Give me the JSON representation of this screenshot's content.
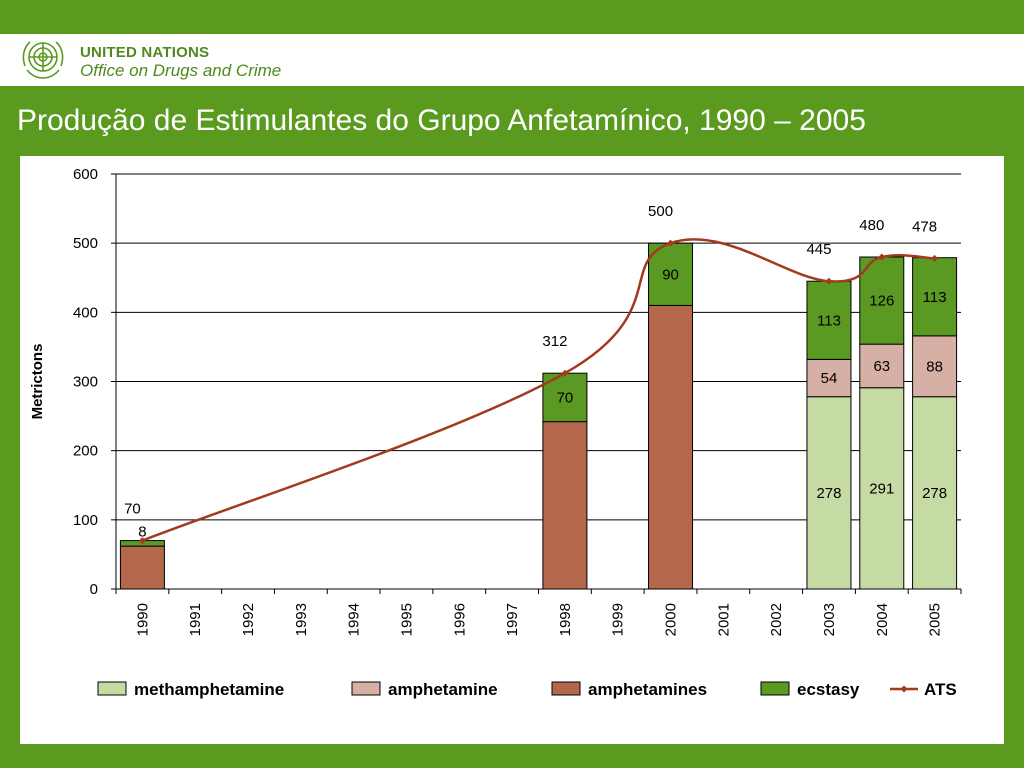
{
  "header": {
    "org_line1": "UNITED NATIONS",
    "org_line2": "Office on Drugs and Crime",
    "title": "Produção de Estimulantes do Grupo Anfetamínico, 1990 – 2005"
  },
  "colors": {
    "brand_green": "#5a9a1e",
    "methamphetamine": "#c6dba3",
    "amphetamine": "#d6b0a4",
    "amphetamines": "#b5674b",
    "ecstasy": "#5b9a22",
    "ATS": "#a33a1e"
  },
  "chart_data": {
    "type": "bar",
    "stacked": true,
    "title": "",
    "xlabel": "",
    "ylabel": "Metrictons",
    "ylim": [
      0,
      600
    ],
    "yticks": [
      0,
      100,
      200,
      300,
      400,
      500,
      600
    ],
    "grid": true,
    "legend_position": "bottom",
    "categories": [
      "1990",
      "1991",
      "1992",
      "1993",
      "1994",
      "1995",
      "1996",
      "1997",
      "1998",
      "1999",
      "2000",
      "2001",
      "2002",
      "2003",
      "2004",
      "2005"
    ],
    "series": [
      {
        "name": "methamphetamine",
        "values": [
          null,
          null,
          null,
          null,
          null,
          null,
          null,
          null,
          null,
          null,
          null,
          null,
          null,
          278,
          291,
          278
        ]
      },
      {
        "name": "amphetamine",
        "values": [
          null,
          null,
          null,
          null,
          null,
          null,
          null,
          null,
          null,
          null,
          null,
          null,
          null,
          54,
          63,
          88
        ]
      },
      {
        "name": "amphetamines",
        "values": [
          62,
          null,
          null,
          null,
          null,
          null,
          null,
          null,
          242,
          null,
          410,
          null,
          null,
          null,
          null,
          null
        ]
      },
      {
        "name": "ecstasy",
        "values": [
          8,
          null,
          null,
          null,
          null,
          null,
          null,
          null,
          70,
          null,
          90,
          null,
          null,
          113,
          126,
          113
        ]
      }
    ],
    "line": {
      "name": "ATS",
      "points": [
        [
          1990,
          70
        ],
        [
          1998,
          312
        ],
        [
          2000,
          500
        ],
        [
          2003,
          445
        ],
        [
          2004,
          480
        ],
        [
          2005,
          478
        ]
      ]
    },
    "segment_labels": [
      {
        "year": "1990",
        "series": "ecstasy",
        "text": "8"
      },
      {
        "year": "1998",
        "series": "ecstasy",
        "text": "70"
      },
      {
        "year": "2000",
        "series": "ecstasy",
        "text": "90"
      },
      {
        "year": "2003",
        "series": "methamphetamine",
        "text": "278"
      },
      {
        "year": "2003",
        "series": "amphetamine",
        "text": "54"
      },
      {
        "year": "2003",
        "series": "ecstasy",
        "text": "113"
      },
      {
        "year": "2004",
        "series": "methamphetamine",
        "text": "291"
      },
      {
        "year": "2004",
        "series": "amphetamine",
        "text": "63"
      },
      {
        "year": "2004",
        "series": "ecstasy",
        "text": "126"
      },
      {
        "year": "2005",
        "series": "methamphetamine",
        "text": "278"
      },
      {
        "year": "2005",
        "series": "amphetamine",
        "text": "88"
      },
      {
        "year": "2005",
        "series": "ecstasy",
        "text": "113"
      }
    ],
    "total_labels": [
      {
        "year": "1990",
        "text": "70"
      },
      {
        "year": "1998",
        "text": "312"
      },
      {
        "year": "2000",
        "text": "500"
      },
      {
        "year": "2003",
        "text": "445"
      },
      {
        "year": "2004",
        "text": "480"
      },
      {
        "year": "2005",
        "text": "478"
      }
    ],
    "legend": [
      "methamphetamine",
      "amphetamine",
      "amphetamines",
      "ecstasy",
      "ATS"
    ]
  }
}
